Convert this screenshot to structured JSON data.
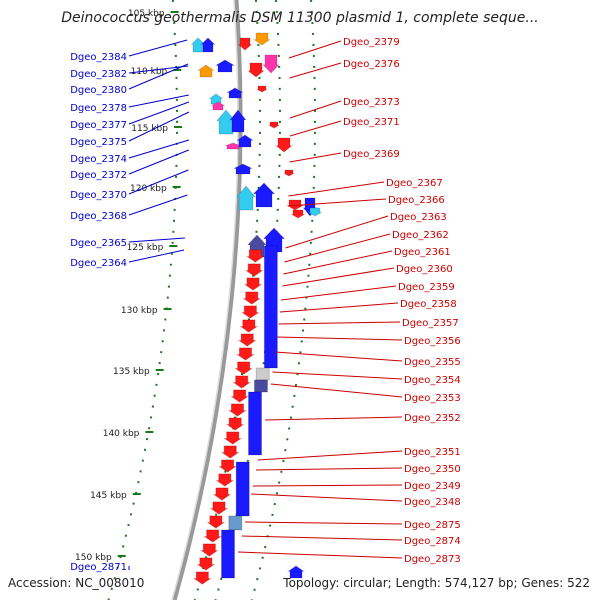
{
  "title": "Deinococcus geothermalis DSM 11300 plasmid 1, complete seque...",
  "accession": "Accession: NC_008010",
  "topology": "Topology: circular; Length: 574,127 bp; Genes: 522",
  "colors": {
    "forward": "#ff1a1a",
    "reverse": "#1a1aff",
    "left_label": "#0000cc",
    "right_label": "#cc0000",
    "backbone": "#999999",
    "ticks": "#1a7a1a"
  },
  "ticks": [
    "105 kbp",
    "110 kbp",
    "115 kbp",
    "120 kbp",
    "125 kbp",
    "130 kbp",
    "135 kbp",
    "140 kbp",
    "145 kbp",
    "150 kbp"
  ],
  "left_genes": [
    "Dgeo_2384",
    "Dgeo_2382",
    "Dgeo_2380",
    "Dgeo_2378",
    "Dgeo_2377",
    "Dgeo_2375",
    "Dgeo_2374",
    "Dgeo_2372",
    "Dgeo_2370",
    "Dgeo_2368",
    "Dgeo_2365",
    "Dgeo_2364",
    "Dgeo_2871"
  ],
  "right_genes": [
    "Dgeo_2379",
    "Dgeo_2376",
    "Dgeo_2373",
    "Dgeo_2371",
    "Dgeo_2369",
    "Dgeo_2367",
    "Dgeo_2366",
    "Dgeo_2363",
    "Dgeo_2362",
    "Dgeo_2361",
    "Dgeo_2360",
    "Dgeo_2359",
    "Dgeo_2358",
    "Dgeo_2357",
    "Dgeo_2356",
    "Dgeo_2355",
    "Dgeo_2354",
    "Dgeo_2353",
    "Dgeo_2352",
    "Dgeo_2351",
    "Dgeo_2350",
    "Dgeo_2349",
    "Dgeo_2348",
    "Dgeo_2875",
    "Dgeo_2874",
    "Dgeo_2873"
  ]
}
